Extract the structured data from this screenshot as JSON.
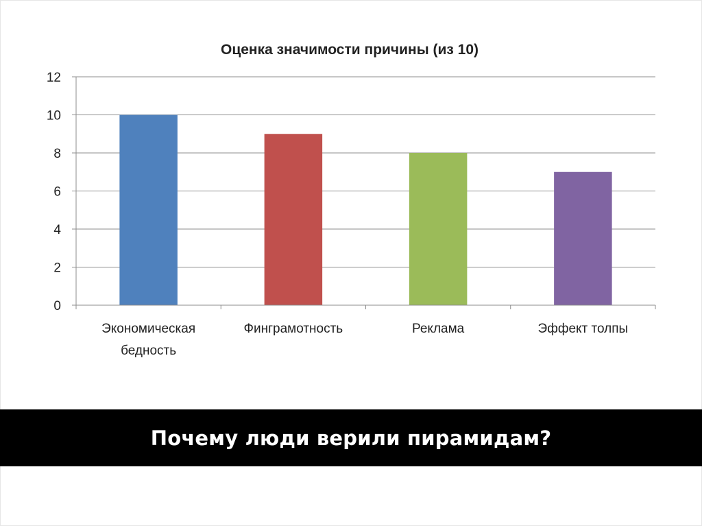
{
  "caption": "Почему люди верили пирамидам?",
  "chart_data": {
    "type": "bar",
    "title": "Оценка значимости причины (из 10)",
    "categories": [
      [
        "Экономическая",
        "бедность"
      ],
      [
        "Финграмотность"
      ],
      [
        "Реклама"
      ],
      [
        "Эффект толпы"
      ]
    ],
    "values": [
      10,
      9,
      8,
      7
    ],
    "colors": [
      "#4f81bd",
      "#c0504d",
      "#9bbb59",
      "#8064a2"
    ],
    "ylim": [
      0,
      12
    ],
    "yticks": [
      0,
      2,
      4,
      6,
      8,
      10,
      12
    ],
    "grid": true,
    "legend": "none",
    "xlabel": "",
    "ylabel": ""
  }
}
